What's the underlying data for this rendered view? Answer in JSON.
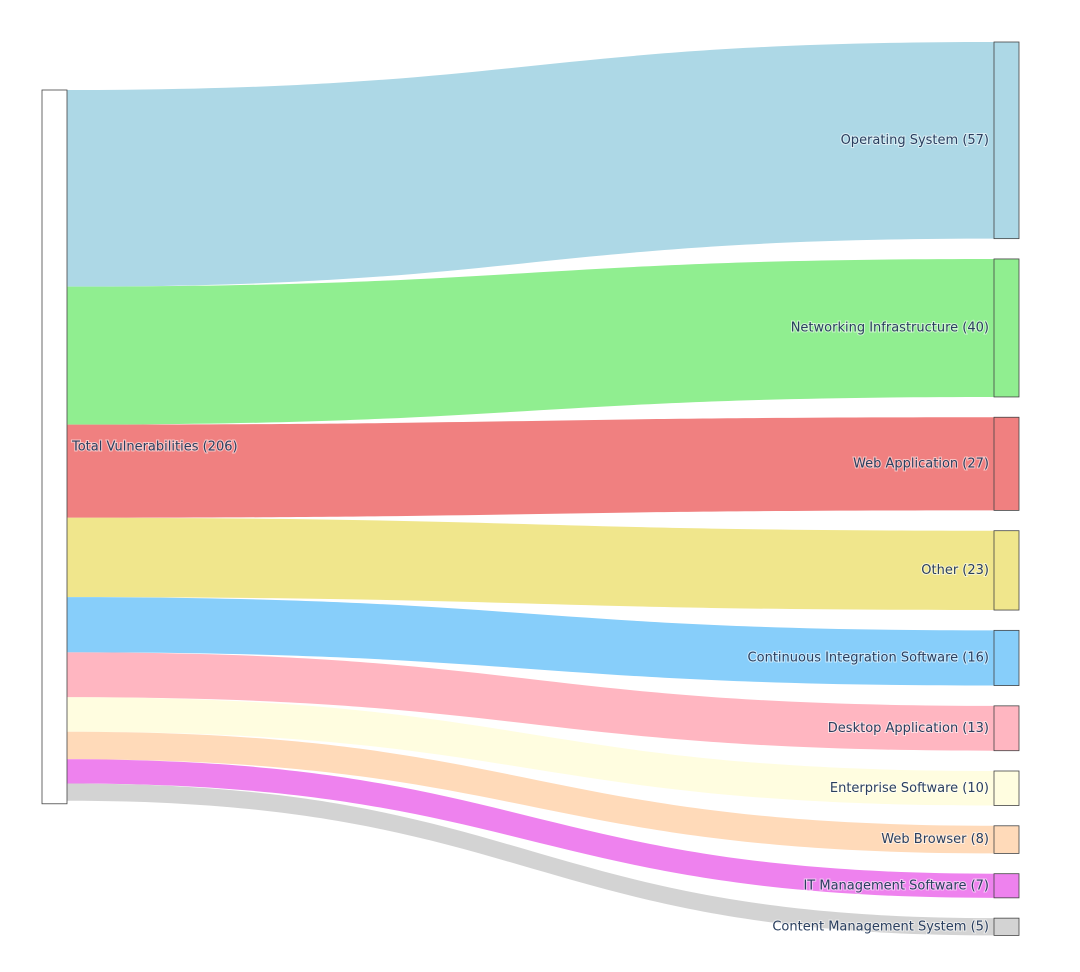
{
  "chart_data": {
    "type": "sankey",
    "source": {
      "name": "Total Vulnerabilities",
      "value": 206,
      "label": "Total Vulnerabilities (206)"
    },
    "targets": [
      {
        "name": "Operating System",
        "value": 57,
        "label": "Operating System (57)",
        "color": "#add8e6"
      },
      {
        "name": "Networking Infrastructure",
        "value": 40,
        "label": "Networking Infrastructure (40)",
        "color": "#90ee90"
      },
      {
        "name": "Web Application",
        "value": 27,
        "label": "Web Application (27)",
        "color": "#f08080"
      },
      {
        "name": "Other",
        "value": 23,
        "label": "Other (23)",
        "color": "#f0e68c"
      },
      {
        "name": "Continuous Integration Software",
        "value": 16,
        "label": "Continuous Integration Software (16)",
        "color": "#87cefa"
      },
      {
        "name": "Desktop Application",
        "value": 13,
        "label": "Desktop Application (13)",
        "color": "#ffb6c1"
      },
      {
        "name": "Enterprise Software",
        "value": 10,
        "label": "Enterprise Software (10)",
        "color": "#fffde0"
      },
      {
        "name": "Web Browser",
        "value": 8,
        "label": "Web Browser (8)",
        "color": "#ffdab9"
      },
      {
        "name": "IT Management Software",
        "value": 7,
        "label": "IT Management Software (7)",
        "color": "#ee82ee"
      },
      {
        "name": "Content Management System",
        "value": 5,
        "label": "Content Management System (5)",
        "color": "#d3d3d3"
      }
    ],
    "source_color": "#ffffff"
  }
}
